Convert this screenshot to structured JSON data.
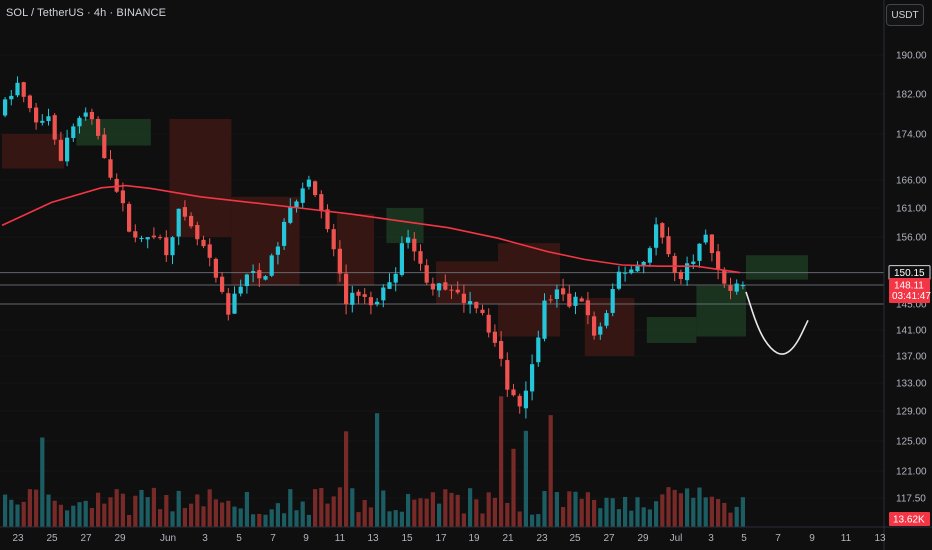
{
  "header": {
    "symbol_title": "SOL / TetherUS · 4h · BINANCE",
    "currency_button": "USDT"
  },
  "colors": {
    "background": "#0f0f0f",
    "bull": "#26c6da",
    "bear": "#ef5350",
    "ma_line": "#f23645",
    "projection": "#e8e8e8",
    "cloud_bull": "#1b3a22",
    "cloud_bear": "#3d1714",
    "level_line": "#787b86",
    "label_red": "#f23645"
  },
  "chart_data": {
    "type": "candlestick",
    "title": "SOL / TetherUS · 4h · BINANCE",
    "y_axis": {
      "range": [
        112,
        196
      ],
      "ticks": [
        "190.00",
        "182.00",
        "174.00",
        "166.00",
        "161.00",
        "156.00",
        "145.00",
        "141.00",
        "137.00",
        "133.00",
        "129.00",
        "125.00",
        "121.00",
        "117.50"
      ]
    },
    "x_axis": {
      "ticks": [
        "23",
        "25",
        "27",
        "29",
        "Jun",
        "3",
        "5",
        "7",
        "9",
        "11",
        "13",
        "15",
        "17",
        "19",
        "21",
        "23",
        "25",
        "27",
        "29",
        "Jul",
        "3",
        "5",
        "7",
        "9",
        "11",
        "13"
      ]
    },
    "price_labels": [
      {
        "text": "150.15",
        "price": 150.15,
        "style": "outline"
      },
      {
        "text": "148.11",
        "price": 148.11,
        "style": "red",
        "sub": "03:41:47"
      },
      {
        "text": "13.62K",
        "style": "red-volume"
      }
    ],
    "horizontal_levels": [
      150.15,
      148.11,
      145.0
    ],
    "price_path": [
      [
        0,
        178
      ],
      [
        3,
        184
      ],
      [
        4,
        181
      ],
      [
        6,
        176
      ],
      [
        8,
        178
      ],
      [
        10,
        170
      ],
      [
        12,
        176
      ],
      [
        14,
        178
      ],
      [
        16,
        174
      ],
      [
        19,
        164
      ],
      [
        21,
        158
      ],
      [
        23,
        155
      ],
      [
        25,
        157
      ],
      [
        27,
        154
      ],
      [
        29,
        160
      ],
      [
        31,
        157
      ],
      [
        33,
        154
      ],
      [
        35,
        149
      ],
      [
        37,
        143
      ],
      [
        38,
        147
      ],
      [
        40,
        150
      ],
      [
        42,
        149
      ],
      [
        44,
        152
      ],
      [
        46,
        158
      ],
      [
        48,
        163
      ],
      [
        50,
        167
      ],
      [
        52,
        160
      ],
      [
        54,
        154
      ],
      [
        56,
        145
      ],
      [
        58,
        147
      ],
      [
        60,
        144
      ],
      [
        62,
        147
      ],
      [
        64,
        151
      ],
      [
        66,
        157
      ],
      [
        68,
        151
      ],
      [
        70,
        148
      ],
      [
        72,
        147
      ],
      [
        74,
        146
      ],
      [
        76,
        146
      ],
      [
        78,
        144
      ],
      [
        80,
        139
      ],
      [
        82,
        133
      ],
      [
        84,
        130
      ],
      [
        86,
        136
      ],
      [
        88,
        145
      ],
      [
        90,
        147
      ],
      [
        92,
        145
      ],
      [
        94,
        146
      ],
      [
        96,
        140
      ],
      [
        98,
        143
      ],
      [
        100,
        150
      ],
      [
        102,
        151
      ],
      [
        104,
        152
      ],
      [
        106,
        158
      ],
      [
        108,
        153
      ],
      [
        110,
        149
      ],
      [
        112,
        153
      ],
      [
        114,
        156
      ],
      [
        116,
        151
      ],
      [
        118,
        147
      ],
      [
        119,
        148.11
      ]
    ],
    "ma_path": [
      [
        0,
        158
      ],
      [
        8,
        162
      ],
      [
        16,
        164.6
      ],
      [
        20,
        165
      ],
      [
        24,
        164.5
      ],
      [
        32,
        163
      ],
      [
        40,
        162
      ],
      [
        48,
        161
      ],
      [
        56,
        160
      ],
      [
        64,
        158.8
      ],
      [
        72,
        157.6
      ],
      [
        80,
        155.8
      ],
      [
        88,
        153.6
      ],
      [
        94,
        152.3
      ],
      [
        100,
        151.4
      ],
      [
        106,
        151.2
      ],
      [
        112,
        151.2
      ],
      [
        119,
        150.15
      ]
    ],
    "projection_path": [
      [
        120,
        147
      ],
      [
        122,
        141
      ],
      [
        124,
        138
      ],
      [
        126,
        137
      ],
      [
        128,
        138.5
      ],
      [
        130,
        142.5
      ]
    ],
    "cloud_bear": [
      {
        "x0": 0,
        "x1": 10,
        "top": 174,
        "bottom": 168
      },
      {
        "x0": 27,
        "x1": 37,
        "top": 177,
        "bottom": 156
      },
      {
        "x0": 37,
        "x1": 48,
        "top": 163,
        "bottom": 148
      },
      {
        "x0": 54,
        "x1": 60,
        "top": 160,
        "bottom": 148
      },
      {
        "x0": 70,
        "x1": 80,
        "top": 152,
        "bottom": 145
      },
      {
        "x0": 80,
        "x1": 90,
        "top": 155,
        "bottom": 140
      },
      {
        "x0": 94,
        "x1": 102,
        "top": 146,
        "bottom": 137
      }
    ],
    "cloud_bull": [
      {
        "x0": 12,
        "x1": 24,
        "top": 177,
        "bottom": 172
      },
      {
        "x0": 62,
        "x1": 68,
        "top": 161,
        "bottom": 155
      },
      {
        "x0": 104,
        "x1": 112,
        "top": 143,
        "bottom": 139
      },
      {
        "x0": 112,
        "x1": 120,
        "top": 148,
        "bottom": 140
      },
      {
        "x0": 120,
        "x1": 130,
        "top": 153,
        "bottom": 149
      }
    ]
  }
}
